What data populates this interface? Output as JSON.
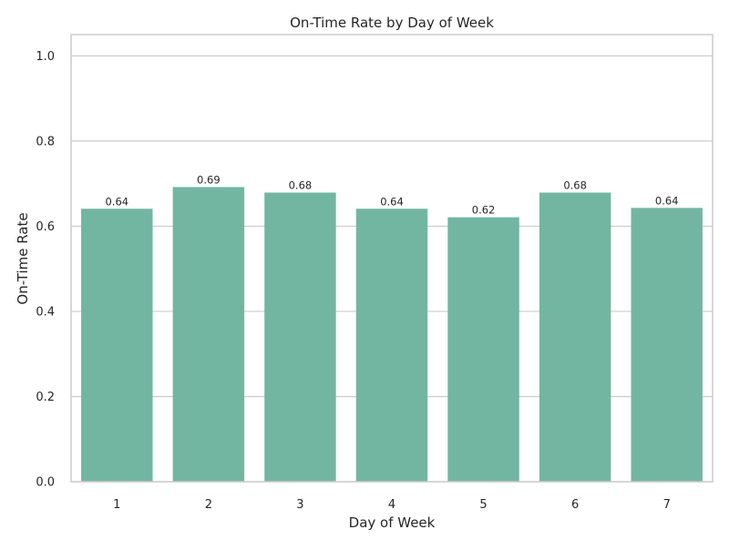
{
  "chart_data": {
    "type": "bar",
    "title": "On-Time Rate by Day of Week",
    "xlabel": "Day of Week",
    "ylabel": "On-Time Rate",
    "categories": [
      "1",
      "2",
      "3",
      "4",
      "5",
      "6",
      "7"
    ],
    "values": [
      0.641,
      0.692,
      0.679,
      0.641,
      0.621,
      0.679,
      0.643
    ],
    "data_labels": [
      "0.64",
      "0.69",
      "0.68",
      "0.64",
      "0.62",
      "0.68",
      "0.64"
    ],
    "yticks": [
      0.0,
      0.2,
      0.4,
      0.6,
      0.8,
      1.0
    ],
    "ytick_labels": [
      "0.0",
      "0.2",
      "0.4",
      "0.6",
      "0.8",
      "1.0"
    ],
    "ylim": [
      0,
      1.05
    ],
    "grid": "horizontal",
    "bar_color": "#72b6a1",
    "legend": "none"
  }
}
